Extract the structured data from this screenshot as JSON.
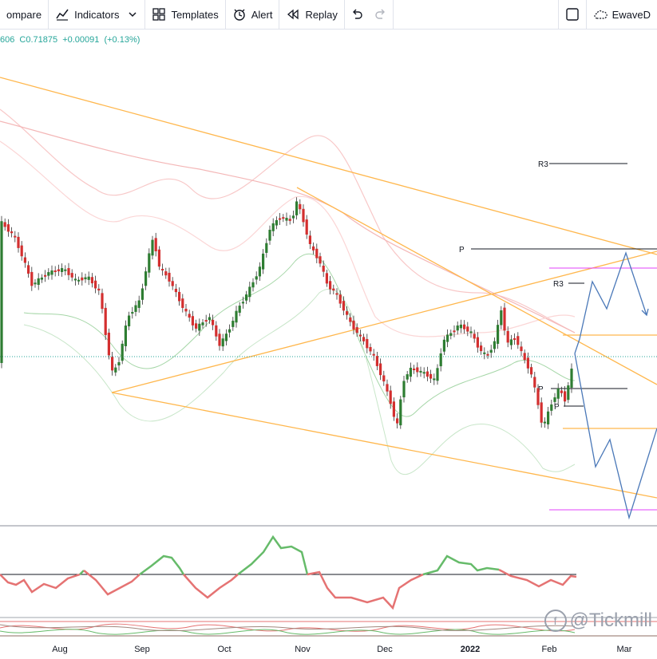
{
  "toolbar": {
    "compare_label": "ompare",
    "indicators_label": "Indicators",
    "templates_label": "Templates",
    "alert_label": "Alert",
    "replay_label": "Replay",
    "ewave_label": "EwaveD"
  },
  "legend": {
    "low_value": "606",
    "close_value": "C0.71875",
    "change_value": "+0.00091",
    "change_pct": "(+0.13%)"
  },
  "pivot_labels": {
    "r3_upper": "R3",
    "p_upper": "P",
    "r3_lower": "R3",
    "p_a": "P",
    "p_b": "P"
  },
  "xaxis": {
    "labels": [
      "Aug",
      "Sep",
      "Oct",
      "Nov",
      "Dec",
      "2022",
      "Feb",
      "Mar"
    ]
  },
  "watermark": {
    "text": "@Tickmill"
  },
  "colors": {
    "up_candle": "#2e7d32",
    "down_candle": "#d32f2f",
    "trendline": "#ffb74d",
    "forecast": "#4a78b8",
    "pivot_line": "#131722",
    "magenta_line": "#e040fb",
    "oscillator_up": "#66bb6a",
    "oscillator_down": "#e57373"
  },
  "icons": [
    "indicators-icon",
    "chevron-down-icon",
    "templates-icon",
    "alert-icon",
    "replay-icon",
    "undo-icon",
    "redo-icon",
    "square-icon",
    "cloud-icon",
    "tickmill-logo-icon"
  ]
}
